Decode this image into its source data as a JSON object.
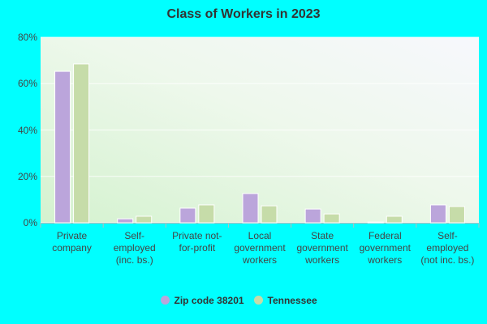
{
  "chart_data": {
    "type": "bar",
    "title": "Class of Workers in 2023",
    "categories": [
      "Private company",
      "Self-employed (inc. bs.)",
      "Private not-for-profit",
      "Local government workers",
      "State government workers",
      "Federal government workers",
      "Self-employed (not inc. bs.)"
    ],
    "series": [
      {
        "name": "Zip code 38201",
        "color": "#bba5db",
        "values": [
          65.3,
          1.7,
          6.3,
          12.6,
          5.9,
          0.3,
          7.7
        ]
      },
      {
        "name": "Tennessee",
        "color": "#c6dca9",
        "values": [
          68.5,
          2.8,
          7.7,
          7.3,
          3.8,
          2.8,
          7.0
        ]
      }
    ],
    "ylim": [
      0,
      80
    ],
    "yticks": [
      {
        "value": 0,
        "label": "0%"
      },
      {
        "value": 20,
        "label": "20%"
      },
      {
        "value": 40,
        "label": "40%"
      },
      {
        "value": 60,
        "label": "60%"
      },
      {
        "value": 80,
        "label": "80%"
      }
    ],
    "grid": true,
    "legend": "bottom"
  }
}
